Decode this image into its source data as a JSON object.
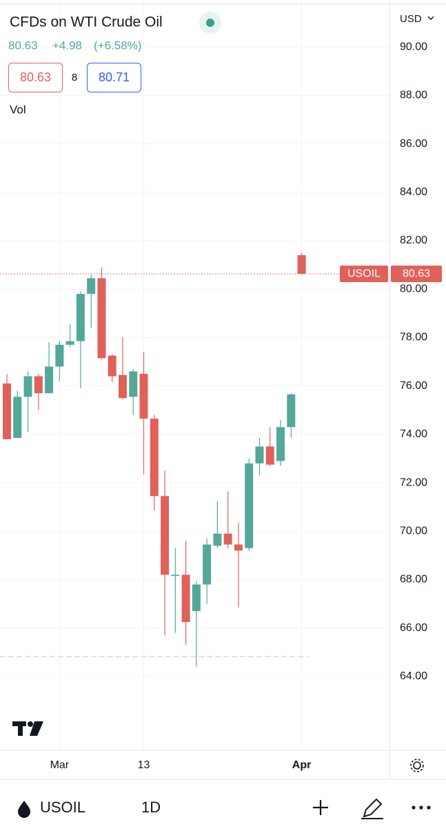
{
  "header": {
    "title": "CFDs on WTI Crude Oil",
    "last": "80.63",
    "change": "+4.98",
    "change_pct": "(+6.58%)",
    "bid": "80.63",
    "spread": "8",
    "ask": "80.71",
    "volume_label": "Vol",
    "currency": "USD"
  },
  "toolbar": {
    "symbol": "USOIL",
    "interval": "1D"
  },
  "chart_data": {
    "type": "candlestick",
    "categories": [
      null,
      null,
      null,
      null,
      null,
      "Mar",
      null,
      null,
      null,
      null,
      null,
      null,
      null,
      "13",
      null,
      null,
      null,
      null,
      null,
      null,
      null,
      null,
      null,
      null,
      null,
      null,
      null,
      null,
      "Apr"
    ],
    "series": {
      "up_color": "#53a89a",
      "down_color": "#e0605a",
      "open": [
        76.1,
        73.85,
        75.55,
        76.4,
        75.7,
        76.8,
        77.7,
        77.85,
        79.8,
        80.45,
        77.25,
        76.45,
        75.55,
        76.5,
        74.65,
        71.45,
        68.15,
        68.2,
        66.7,
        67.8,
        69.4,
        69.9,
        69.45,
        69.3,
        72.8,
        73.5,
        72.9,
        74.3,
        81.4
      ],
      "high": [
        76.5,
        75.8,
        76.6,
        76.5,
        77.8,
        77.85,
        78.55,
        79.9,
        80.6,
        80.9,
        77.3,
        78.0,
        76.7,
        77.4,
        74.8,
        72.5,
        69.3,
        69.6,
        67.95,
        69.7,
        71.25,
        71.65,
        70.35,
        73.0,
        73.85,
        74.3,
        74.6,
        75.7,
        81.5
      ],
      "low": [
        73.8,
        73.85,
        74.1,
        75.0,
        75.7,
        76.2,
        77.6,
        75.9,
        78.4,
        77.1,
        76.15,
        75.45,
        74.8,
        72.35,
        70.85,
        65.7,
        65.8,
        65.3,
        64.4,
        67.0,
        69.3,
        69.3,
        66.85,
        69.2,
        72.3,
        72.7,
        72.7,
        73.85,
        80.6
      ],
      "close": [
        73.8,
        75.55,
        76.4,
        75.7,
        76.8,
        77.7,
        77.85,
        79.8,
        80.45,
        77.15,
        76.4,
        75.5,
        76.6,
        74.65,
        71.45,
        68.2,
        68.2,
        66.25,
        67.8,
        69.45,
        69.9,
        69.45,
        69.2,
        72.8,
        73.5,
        72.75,
        74.3,
        75.65,
        80.63
      ]
    },
    "price_line": {
      "symbol": "USOIL",
      "value": 80.63,
      "label": "80.63",
      "color": "#e0605a"
    },
    "ylim": [
      60.95,
      91.94
    ],
    "yticks": [
      {
        "value": 64,
        "label": "64.00"
      },
      {
        "value": 66,
        "label": "66.00"
      },
      {
        "value": 68,
        "label": "68.00"
      },
      {
        "value": 70,
        "label": "70.00"
      },
      {
        "value": 72,
        "label": "72.00"
      },
      {
        "value": 74,
        "label": "74.00"
      },
      {
        "value": 76,
        "label": "76.00"
      },
      {
        "value": 78,
        "label": "78.00"
      },
      {
        "value": 80,
        "label": "80.00"
      },
      {
        "value": 82,
        "label": "82.00"
      },
      {
        "value": 84,
        "label": "84.00"
      },
      {
        "value": 86,
        "label": "86.00"
      },
      {
        "value": 88,
        "label": "88.00"
      },
      {
        "value": 90,
        "label": "90.00"
      }
    ],
    "grid": true
  }
}
